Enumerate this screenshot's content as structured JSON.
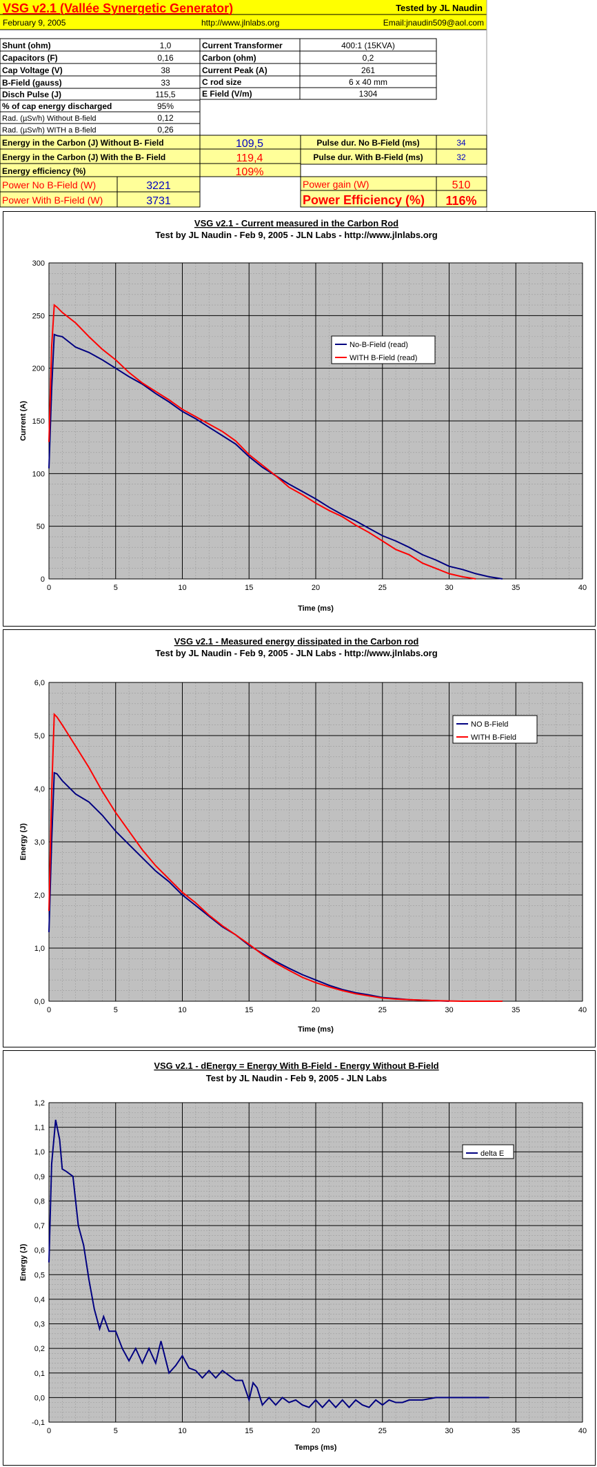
{
  "header": {
    "title": "VSG v2.1 (Vallée Synergetic Generator)",
    "tested_by": "Tested by JL Naudin",
    "date": "February 9, 2005",
    "site": "http://www.jlnlabs.org",
    "email": "Email:jnaudin509@aol.com"
  },
  "params_left": [
    {
      "label": "Shunt (ohm)",
      "value": "1,0"
    },
    {
      "label": "Capacitors (F)",
      "value": "0,16"
    },
    {
      "label": "Cap Voltage (V)",
      "value": "38"
    },
    {
      "label": "B-Field (gauss)",
      "value": "33"
    },
    {
      "label": "Disch Pulse (J)",
      "value": "115,5"
    },
    {
      "label": "% of cap energy discharged",
      "value": "95%"
    },
    {
      "label": "Rad. (µSv/h) Without B-field",
      "value": "0,12"
    },
    {
      "label": "Rad. (µSv/h) WITH a B-field",
      "value": "0,26"
    }
  ],
  "params_right": [
    {
      "label": "Current Transformer",
      "value": "400:1 (15KVA)"
    },
    {
      "label": "Carbon  (ohm)",
      "value": "0,2"
    },
    {
      "label": "Current Peak (A)",
      "value": "261"
    },
    {
      "label": "C rod size",
      "value": "6 x 40 mm"
    },
    {
      "label": "E Field (V/m)",
      "value": "1304"
    }
  ],
  "results": {
    "energy_without_label": "Energy in the Carbon (J) Without B- Field",
    "energy_without_value": "109,5",
    "energy_with_label": "Energy in the Carbon (J) With the B- Field",
    "energy_with_value": "119,4",
    "efficiency_label": "Energy efficiency (%)",
    "efficiency_value": "109%",
    "pulse_no_label": "Pulse dur. No B-Field (ms)",
    "pulse_no_value": "34",
    "pulse_with_label": "Pulse dur. With B-Field (ms)",
    "pulse_with_value": "32",
    "power_no_label": "Power No B-Field (W)",
    "power_no_value": "3221",
    "power_with_label": "Power With B-Field (W)",
    "power_with_value": "3731",
    "power_gain_label": "Power gain (W)",
    "power_gain_value": "510",
    "power_eff_label": "Power Efficiency (%)",
    "power_eff_value": "116%"
  },
  "colors": {
    "yellow": "#ffff99",
    "title_yellow": "#ffff00",
    "red": "#ff0000",
    "blue": "#0000c0",
    "navy": "#000080",
    "plot_gray": "#c0c0c0"
  },
  "chart_data": [
    {
      "type": "line",
      "title": "VSG v2.1 - Current measured in the Carbon Rod",
      "subtitle": "Test by JL Naudin - Feb 9, 2005 - JLN Labs - http://www.jlnlabs.org",
      "xlabel": "Time (ms)",
      "ylabel": "Current (A)",
      "xlim": [
        0,
        40
      ],
      "ylim": [
        0,
        300
      ],
      "xticks": [
        0,
        5,
        10,
        15,
        20,
        25,
        30,
        35,
        40
      ],
      "yticks": [
        0,
        50,
        100,
        150,
        200,
        250,
        300
      ],
      "ytick_labels": [
        "0",
        "50",
        "100",
        "150",
        "200",
        "250",
        "300"
      ],
      "grid": true,
      "legend": "right",
      "series": [
        {
          "name": "No-B-Field (read)",
          "color": "#000080",
          "x": [
            0,
            0.2,
            0.4,
            0.6,
            1,
            2,
            3,
            4,
            5,
            6,
            7,
            8,
            9,
            10,
            11,
            12,
            13,
            14,
            15,
            16,
            17,
            18,
            19,
            20,
            21,
            22,
            23,
            24,
            25,
            26,
            27,
            28,
            29,
            30,
            31,
            32,
            33,
            34
          ],
          "y": [
            105,
            180,
            232,
            231,
            230,
            220,
            215,
            208,
            200,
            192,
            185,
            176,
            168,
            159,
            152,
            144,
            136,
            128,
            116,
            106,
            98,
            90,
            83,
            76,
            68,
            61,
            55,
            48,
            41,
            36,
            30,
            23,
            18,
            12,
            9,
            5,
            2,
            0
          ]
        },
        {
          "name": "WITH B-Field (read)",
          "color": "#ff0000",
          "x": [
            0,
            0.2,
            0.4,
            0.6,
            1,
            2,
            3,
            4,
            5,
            6,
            7,
            8,
            9,
            10,
            11,
            12,
            13,
            14,
            15,
            16,
            17,
            18,
            19,
            20,
            21,
            22,
            23,
            24,
            25,
            26,
            27,
            28,
            29,
            30,
            31,
            32
          ],
          "y": [
            130,
            220,
            260,
            258,
            253,
            243,
            230,
            218,
            208,
            196,
            186,
            178,
            170,
            161,
            154,
            147,
            140,
            131,
            118,
            108,
            98,
            87,
            80,
            72,
            65,
            59,
            51,
            44,
            36,
            28,
            23,
            15,
            10,
            5,
            2,
            0
          ]
        }
      ]
    },
    {
      "type": "line",
      "title": "VSG v2.1 - Measured energy dissipated in the Carbon rod",
      "subtitle": "Test by JL Naudin - Feb 9, 2005 - JLN Labs - http://www.jlnlabs.org",
      "xlabel": "Time (ms)",
      "ylabel": "Energy (J)",
      "xlim": [
        0,
        40
      ],
      "ylim": [
        0,
        6
      ],
      "xticks": [
        0,
        5,
        10,
        15,
        20,
        25,
        30,
        35,
        40
      ],
      "yticks": [
        0,
        1,
        2,
        3,
        4,
        5,
        6
      ],
      "ytick_labels": [
        "0,0",
        "1,0",
        "2,0",
        "3,0",
        "4,0",
        "5,0",
        "6,0"
      ],
      "grid": true,
      "legend": "right",
      "series": [
        {
          "name": "NO B-Field",
          "color": "#000080",
          "x": [
            0,
            0.2,
            0.4,
            0.6,
            1,
            2,
            3,
            4,
            5,
            6,
            7,
            8,
            9,
            10,
            11,
            12,
            13,
            14,
            15,
            16,
            17,
            18,
            19,
            20,
            21,
            22,
            23,
            24,
            25,
            26,
            27,
            28,
            29,
            30
          ],
          "y": [
            1.3,
            3.0,
            4.3,
            4.28,
            4.15,
            3.9,
            3.75,
            3.5,
            3.2,
            2.95,
            2.7,
            2.45,
            2.25,
            2.0,
            1.8,
            1.6,
            1.4,
            1.25,
            1.05,
            0.9,
            0.75,
            0.62,
            0.5,
            0.4,
            0.3,
            0.22,
            0.16,
            0.12,
            0.07,
            0.05,
            0.03,
            0.02,
            0.01,
            0.0
          ]
        },
        {
          "name": "WITH B-Field",
          "color": "#ff0000",
          "x": [
            0,
            0.2,
            0.4,
            0.6,
            1,
            2,
            3,
            4,
            5,
            6,
            7,
            8,
            9,
            10,
            11,
            12,
            13,
            14,
            15,
            16,
            17,
            18,
            19,
            20,
            21,
            22,
            23,
            24,
            25,
            26,
            27,
            28,
            29,
            30,
            31,
            32,
            33,
            34
          ],
          "y": [
            1.7,
            3.9,
            5.4,
            5.35,
            5.2,
            4.8,
            4.4,
            3.95,
            3.55,
            3.2,
            2.85,
            2.55,
            2.3,
            2.05,
            1.85,
            1.62,
            1.42,
            1.25,
            1.07,
            0.88,
            0.72,
            0.58,
            0.45,
            0.35,
            0.27,
            0.2,
            0.14,
            0.1,
            0.06,
            0.04,
            0.03,
            0.02,
            0.01,
            0.005,
            0.0,
            0.0,
            0.0,
            0.0
          ]
        }
      ]
    },
    {
      "type": "line",
      "title": "VSG v2.1 - dEnergy = Energy With B-Field - Energy Without B-Field",
      "subtitle": "Test by JL Naudin - Feb 9, 2005 - JLN Labs",
      "xlabel": "Temps (ms)",
      "ylabel": "Energy (J)",
      "xlim": [
        0,
        40
      ],
      "ylim": [
        -0.1,
        1.2
      ],
      "xticks": [
        0,
        5,
        10,
        15,
        20,
        25,
        30,
        35,
        40
      ],
      "yticks": [
        -0.1,
        0,
        0.1,
        0.2,
        0.3,
        0.4,
        0.5,
        0.6,
        0.7,
        0.8,
        0.9,
        1.0,
        1.1,
        1.2
      ],
      "ytick_labels": [
        "-0,1",
        "0,0",
        "0,1",
        "0,2",
        "0,3",
        "0,4",
        "0,5",
        "0,6",
        "0,7",
        "0,8",
        "0,9",
        "1,0",
        "1,1",
        "1,2"
      ],
      "grid": true,
      "legend": "right",
      "series": [
        {
          "name": "delta E",
          "color": "#000080",
          "x": [
            0,
            0.2,
            0.5,
            0.8,
            1.0,
            1.3,
            1.8,
            2.2,
            2.6,
            3.0,
            3.4,
            3.8,
            4.1,
            4.5,
            5.0,
            5.5,
            6.0,
            6.5,
            7.0,
            7.5,
            8.0,
            8.4,
            9.0,
            9.5,
            10,
            10.5,
            11,
            11.5,
            12,
            12.5,
            13,
            13.5,
            14,
            14.5,
            15,
            15.3,
            15.6,
            16,
            16.5,
            17,
            17.5,
            18,
            18.5,
            19,
            19.5,
            20,
            20.5,
            21,
            21.5,
            22,
            22.5,
            23,
            23.5,
            24,
            24.5,
            25,
            25.5,
            26,
            26.5,
            27,
            27.5,
            28,
            29,
            30,
            31,
            32,
            33
          ],
          "y": [
            0.55,
            0.95,
            1.13,
            1.05,
            0.93,
            0.92,
            0.9,
            0.7,
            0.62,
            0.48,
            0.36,
            0.28,
            0.33,
            0.27,
            0.27,
            0.2,
            0.15,
            0.2,
            0.14,
            0.2,
            0.14,
            0.23,
            0.1,
            0.13,
            0.17,
            0.12,
            0.11,
            0.08,
            0.11,
            0.08,
            0.11,
            0.09,
            0.07,
            0.07,
            -0.01,
            0.06,
            0.04,
            -0.03,
            0.0,
            -0.03,
            0.0,
            -0.02,
            -0.01,
            -0.03,
            -0.04,
            -0.01,
            -0.04,
            -0.01,
            -0.04,
            -0.01,
            -0.04,
            -0.01,
            -0.03,
            -0.04,
            -0.01,
            -0.03,
            -0.01,
            -0.02,
            -0.02,
            -0.01,
            -0.01,
            -0.01,
            0.0,
            0.0,
            0.0,
            0.0,
            0.0
          ]
        }
      ]
    }
  ]
}
